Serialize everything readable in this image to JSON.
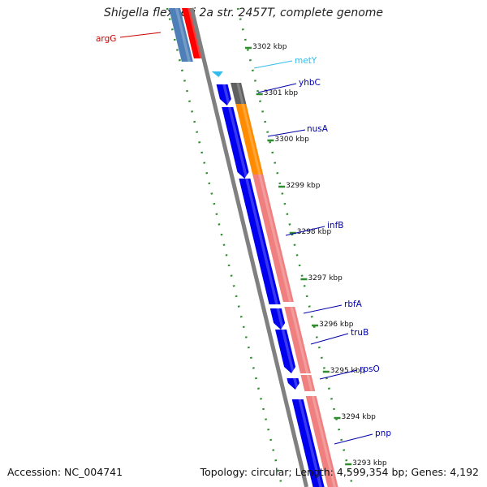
{
  "title": "Shigella flexneri 2a str. 2457T, complete genome",
  "footer": {
    "accession": "Accession: NC_004741",
    "summary": "Topology: circular; Length: 4,599,354 bp; Genes: 4,192"
  },
  "colors": {
    "backbone": "#808080",
    "tick": "#2e8b2e",
    "blue_gene": "#0000ee",
    "pink_gene": "#f08080",
    "red_gene": "#ff0000",
    "steel_gene": "#4f7fb8",
    "orange_gene": "#ff8c00",
    "gray_gene": "#606060",
    "trna": "#33bbee"
  },
  "ticks": [
    {
      "label": "3302 kbp"
    },
    {
      "label": "3301 kbp"
    },
    {
      "label": "3300 kbp"
    },
    {
      "label": "3299 kbp"
    },
    {
      "label": "3298 kbp"
    },
    {
      "label": "3297 kbp"
    },
    {
      "label": "3296 kbp"
    },
    {
      "label": "3295 kbp"
    },
    {
      "label": "3294 kbp"
    },
    {
      "label": "3293 kbp"
    }
  ],
  "gene_labels": [
    {
      "name": "argG",
      "color": "#cc0000"
    },
    {
      "name": "metY",
      "color": "#33bbee"
    },
    {
      "name": "yhbC",
      "color": "#0000aa"
    },
    {
      "name": "nusA",
      "color": "#0000aa"
    },
    {
      "name": "infB",
      "color": "#0000aa"
    },
    {
      "name": "rbfA",
      "color": "#0000aa"
    },
    {
      "name": "truB",
      "color": "#0000aa"
    },
    {
      "name": "rpsO",
      "color": "#0000aa"
    },
    {
      "name": "pnp",
      "color": "#0000aa"
    }
  ]
}
